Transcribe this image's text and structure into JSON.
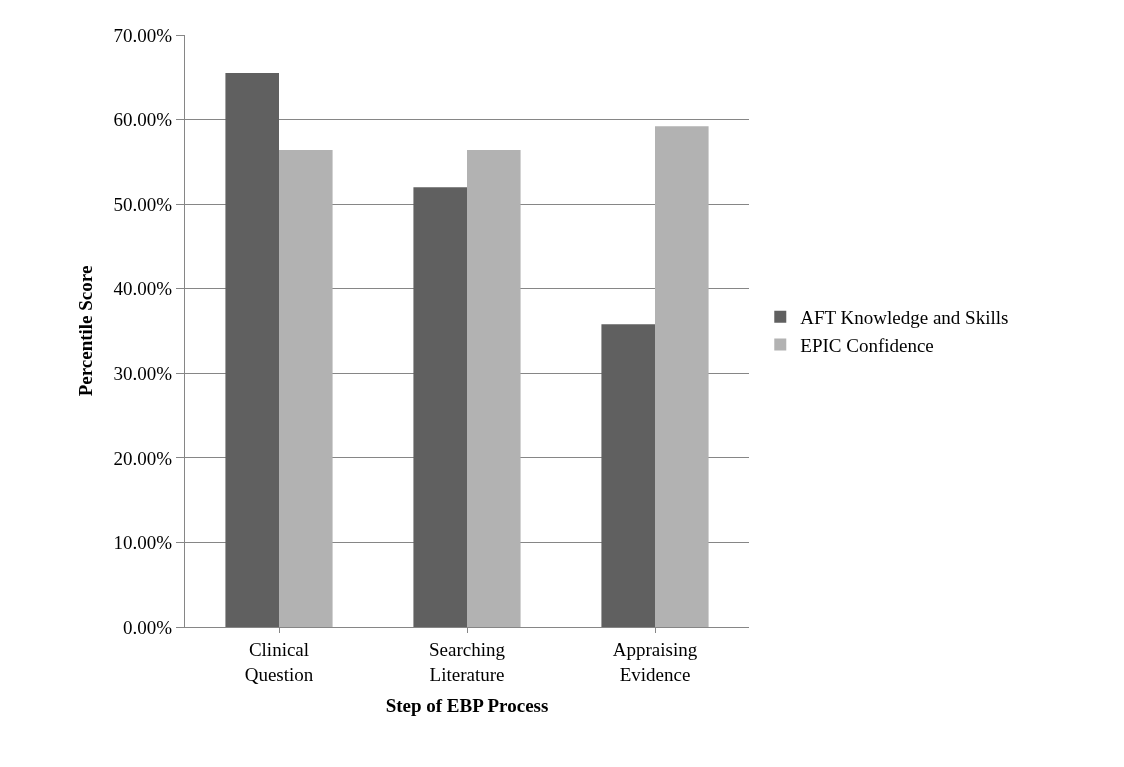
{
  "chart_data": {
    "type": "bar",
    "xlabel": "Step of EBP Process",
    "ylabel": "Percentile Score",
    "categories": [
      "Clinical Question",
      "Searching Literature",
      "Appraising Evidence"
    ],
    "series": [
      {
        "name": "AFT Knowledge and Skills",
        "color": "#606060",
        "values": [
          65.5,
          52.0,
          35.8
        ]
      },
      {
        "name": "EPIC Confidence",
        "color": "#b2b2b2",
        "values": [
          56.4,
          56.4,
          59.2
        ]
      }
    ],
    "ylim": [
      0,
      70
    ],
    "yticks": [
      {
        "value": 0,
        "label": "0.00%"
      },
      {
        "value": 10,
        "label": "10.00%"
      },
      {
        "value": 20,
        "label": "20.00%"
      },
      {
        "value": 30,
        "label": "30.00%"
      },
      {
        "value": 40,
        "label": "40.00%"
      },
      {
        "value": 50,
        "label": "50.00%"
      },
      {
        "value": 60,
        "label": "60.00%"
      },
      {
        "value": 70,
        "label": "70.00%"
      }
    ],
    "grid": "y",
    "legend": "right"
  }
}
